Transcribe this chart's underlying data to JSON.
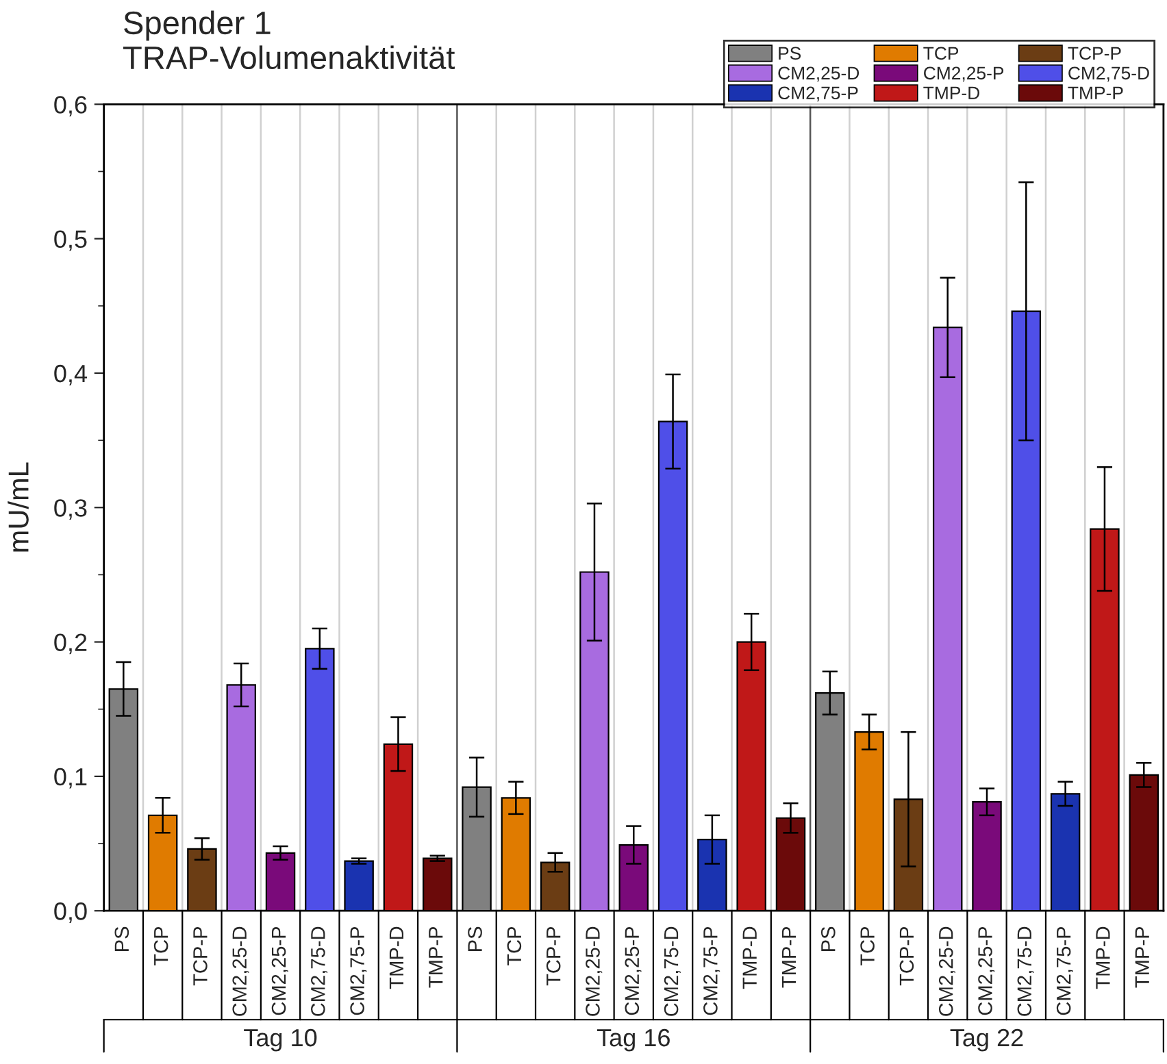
{
  "chart_data": {
    "type": "bar",
    "title": "Spender 1\nTRAP-Volumenaktivität",
    "ylabel": "mU/mL",
    "categories": [
      "Tag 10",
      "Tag 16",
      "Tag 22"
    ],
    "ylim": [
      0,
      0.6
    ],
    "yticks": [
      {
        "value": 0,
        "label": "0,0"
      },
      {
        "value": 0.1,
        "label": "0,1"
      },
      {
        "value": 0.2,
        "label": "0,2"
      },
      {
        "value": 0.3,
        "label": "0,3"
      },
      {
        "value": 0.4,
        "label": "0,4"
      },
      {
        "value": 0.5,
        "label": "0,5"
      },
      {
        "value": 0.6,
        "label": "0,6"
      }
    ],
    "grid": "x",
    "legend": "top right",
    "series": [
      {
        "name": "PS",
        "color": "#808080",
        "values": [
          0.165,
          0.092,
          0.162
        ],
        "errors": [
          0.02,
          0.022,
          0.016
        ]
      },
      {
        "name": "TCP",
        "color": "#e07b00",
        "values": [
          0.071,
          0.084,
          0.133
        ],
        "errors": [
          0.013,
          0.012,
          0.013
        ]
      },
      {
        "name": "TCP-P",
        "color": "#6b3d14",
        "values": [
          0.046,
          0.036,
          0.083
        ],
        "errors": [
          0.008,
          0.007,
          0.05
        ]
      },
      {
        "name": "CM2,25-D",
        "color": "#a86be0",
        "values": [
          0.168,
          0.252,
          0.434
        ],
        "errors": [
          0.016,
          0.051,
          0.037
        ]
      },
      {
        "name": "CM2,25-P",
        "color": "#7a0a7a",
        "values": [
          0.043,
          0.049,
          0.081
        ],
        "errors": [
          0.005,
          0.014,
          0.01
        ]
      },
      {
        "name": "CM2,75-D",
        "color": "#4f4fe8",
        "values": [
          0.195,
          0.364,
          0.446
        ],
        "errors": [
          0.015,
          0.035,
          0.096
        ]
      },
      {
        "name": "CM2,75-P",
        "color": "#1a33b0",
        "values": [
          0.037,
          0.053,
          0.087
        ],
        "errors": [
          0.002,
          0.018,
          0.009
        ]
      },
      {
        "name": "TMP-D",
        "color": "#c01818",
        "values": [
          0.124,
          0.2,
          0.284
        ],
        "errors": [
          0.02,
          0.021,
          0.046
        ]
      },
      {
        "name": "TMP-P",
        "color": "#6b0a0a",
        "values": [
          0.039,
          0.069,
          0.101
        ],
        "errors": [
          0.002,
          0.011,
          0.009
        ]
      }
    ]
  }
}
